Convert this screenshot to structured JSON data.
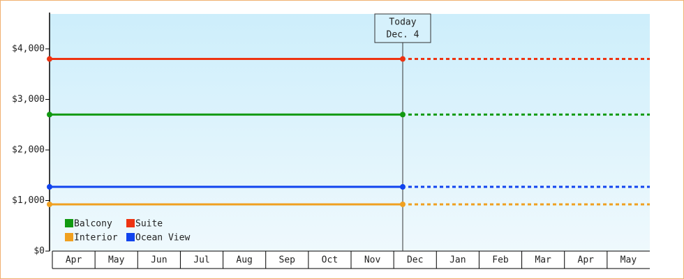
{
  "chart_data": {
    "type": "line",
    "categories": [
      "Apr",
      "May",
      "Jun",
      "Jul",
      "Aug",
      "Sep",
      "Oct",
      "Nov",
      "Dec",
      "Jan",
      "Feb",
      "Mar",
      "Apr",
      "May"
    ],
    "series": [
      {
        "name": "Balcony",
        "color": "#119911",
        "value": 2700
      },
      {
        "name": "Suite",
        "color": "#ee3311",
        "value": 3800
      },
      {
        "name": "Interior",
        "color": "#f0a020",
        "value": 925
      },
      {
        "name": "Ocean View",
        "color": "#1144ee",
        "value": 1270
      }
    ],
    "ylim": [
      0,
      4690
    ],
    "yticks": [
      {
        "value": 0,
        "label": "$0"
      },
      {
        "value": 1000,
        "label": "$1,000"
      },
      {
        "value": 2000,
        "label": "$2,000"
      },
      {
        "value": 3000,
        "label": "$3,000"
      },
      {
        "value": 4000,
        "label": "$4,000"
      }
    ],
    "annotation": [
      "Today",
      "Dec. 4"
    ],
    "legend": "lower left",
    "grid": false
  }
}
